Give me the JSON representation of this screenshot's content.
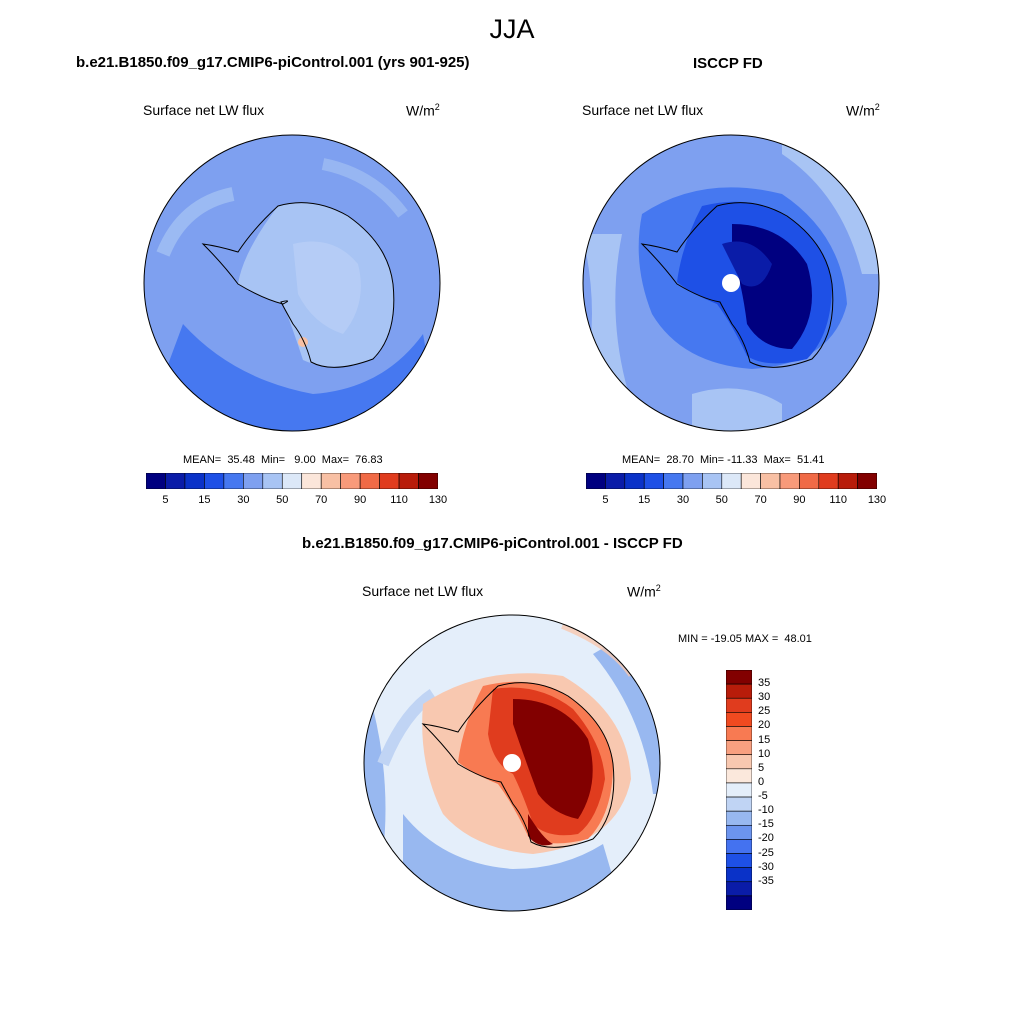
{
  "figure": {
    "season": "JJA"
  },
  "panels": [
    {
      "title": "b.e21.B1850.f09_g17.CMIP6-piControl.001 (yrs 901-925)",
      "left_label": "Surface net LW flux",
      "units": "W/m",
      "units_sup": "2",
      "stats": "MEAN=  35.48  Min=   9.00  Max=  76.83"
    },
    {
      "title": "ISCCP FD",
      "left_label": "Surface net LW flux",
      "units": "W/m",
      "units_sup": "2",
      "stats": "MEAN=  28.70  Min= -11.33  Max=  51.41"
    },
    {
      "title": "b.e21.B1850.f09_g17.CMIP6-piControl.001 - ISCCP FD",
      "left_label": "Surface net LW flux",
      "units": "W/m",
      "units_sup": "2",
      "stats": "MIN = -19.05 MAX =  48.01"
    }
  ],
  "colorbars": {
    "abs": {
      "colors": [
        "#000080",
        "#0a1ca8",
        "#0a32c8",
        "#1e50e6",
        "#4678f0",
        "#7ea0f0",
        "#a8c4f4",
        "#dce8f8",
        "#fbe6da",
        "#f8c0a4",
        "#f89a7a",
        "#f06a46",
        "#e03c1e",
        "#b81c0a",
        "#820000"
      ],
      "tick_labels": [
        "5",
        "15",
        "30",
        "50",
        "70",
        "90",
        "110",
        "130"
      ]
    },
    "diff": {
      "colors": [
        "#820000",
        "#b81c0a",
        "#e03c1e",
        "#f04a20",
        "#f87a52",
        "#f8a080",
        "#f8c8b0",
        "#fbe8dc",
        "#e4eefa",
        "#c0d4f4",
        "#98b8f0",
        "#6c94ee",
        "#4472f0",
        "#1e50e6",
        "#0a32c8",
        "#0a1ca8",
        "#000080"
      ],
      "tick_labels": [
        "35",
        "30",
        "25",
        "20",
        "15",
        "10",
        "5",
        "0",
        "-5",
        "-10",
        "-15",
        "-20",
        "-25",
        "-30",
        "-35"
      ]
    }
  }
}
